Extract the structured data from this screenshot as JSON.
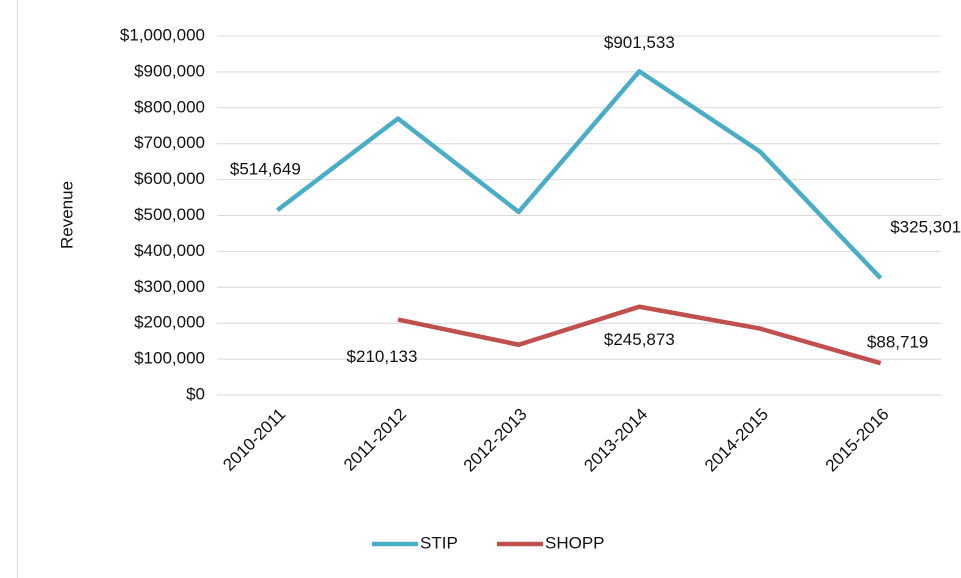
{
  "chart_data": {
    "type": "line",
    "y_label": "Revenue",
    "categories": [
      "2010-2011",
      "2011-2012",
      "2012-2013",
      "2013-2014",
      "2014-2015",
      "2015-2016"
    ],
    "series": [
      {
        "name": "STIP",
        "color": "#4bacc6",
        "values": [
          514649,
          770000,
          510000,
          901533,
          678000,
          325301
        ],
        "value_labels": [
          "$514,649",
          null,
          null,
          "$901,533",
          null,
          "$325,301"
        ]
      },
      {
        "name": "SHOPP",
        "color": "#c0504d",
        "values": [
          null,
          210133,
          140000,
          245873,
          185000,
          88719
        ],
        "value_labels": [
          null,
          "$210,133",
          null,
          "$245,873",
          null,
          "$88,719"
        ]
      }
    ],
    "ylim": [
      0,
      1000000
    ],
    "yticks": [
      {
        "value": 0,
        "label": "$0"
      },
      {
        "value": 100000,
        "label": "$100,000"
      },
      {
        "value": 200000,
        "label": "$200,000"
      },
      {
        "value": 300000,
        "label": "$300,000"
      },
      {
        "value": 400000,
        "label": "$400,000"
      },
      {
        "value": 500000,
        "label": "$500,000"
      },
      {
        "value": 600000,
        "label": "$600,000"
      },
      {
        "value": 700000,
        "label": "$700,000"
      },
      {
        "value": 800000,
        "label": "$800,000"
      },
      {
        "value": 900000,
        "label": "$900,000"
      },
      {
        "value": 1000000,
        "label": "$1,000,000"
      }
    ],
    "grid": true,
    "legend": "bottom"
  }
}
